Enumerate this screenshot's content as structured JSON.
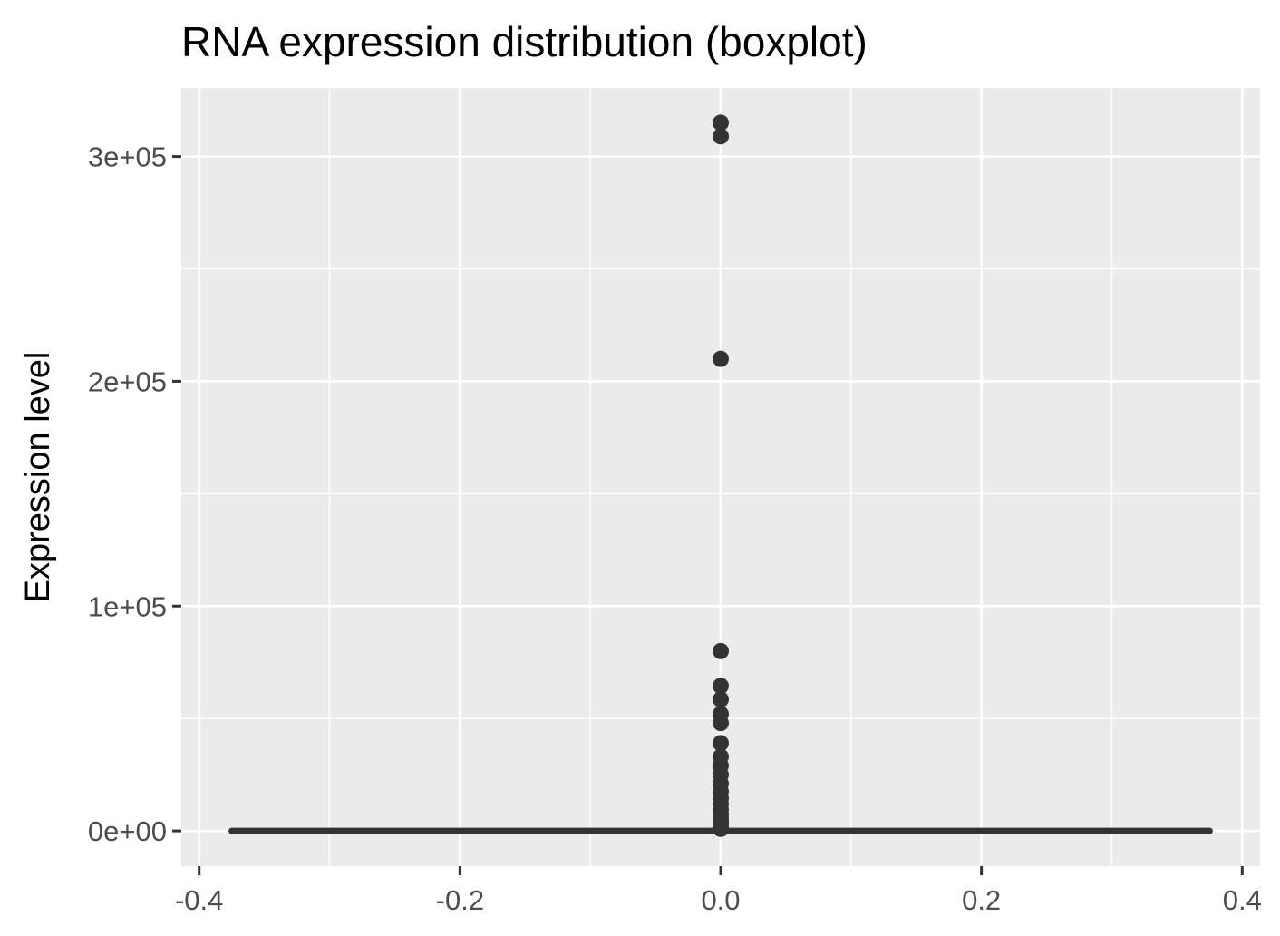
{
  "chart_data": {
    "type": "boxplot",
    "title": "RNA expression distribution (boxplot)",
    "xlabel": "",
    "ylabel": "Expression level",
    "xlim": [
      -0.4,
      0.4
    ],
    "ylim": [
      -15000,
      330000
    ],
    "x_ticks": [
      {
        "value": -0.4,
        "label": "-0.4"
      },
      {
        "value": -0.2,
        "label": "-0.2"
      },
      {
        "value": 0.0,
        "label": "0.0"
      },
      {
        "value": 0.2,
        "label": "0.2"
      },
      {
        "value": 0.4,
        "label": "0.4"
      }
    ],
    "y_ticks": [
      {
        "value": 0,
        "label": "0e+00"
      },
      {
        "value": 100000,
        "label": "1e+05"
      },
      {
        "value": 200000,
        "label": "2e+05"
      },
      {
        "value": 300000,
        "label": "3e+05"
      }
    ],
    "x_minor_gridlines": [
      -0.3,
      -0.1,
      0.1,
      0.3
    ],
    "y_minor_gridlines": [
      50000,
      150000,
      250000
    ],
    "grid": true,
    "box": {
      "x": 0.0,
      "x_range": [
        -0.375,
        0.375
      ],
      "min": 0,
      "q1": 0,
      "median": 0,
      "q3": 0,
      "max": 0
    },
    "outliers_x": 0.0,
    "outliers": [
      315000,
      309000,
      210000,
      80000,
      64500,
      58500,
      52000,
      48000,
      39000,
      33000,
      29000,
      25000,
      21000,
      17500,
      14500,
      12000,
      9500,
      7500,
      5500,
      4000,
      2800,
      1800,
      900
    ],
    "colors": {
      "panel": "#ebebeb",
      "grid": "#ffffff",
      "box": "#333333",
      "outlier": "#333333",
      "tick": "#333333"
    }
  }
}
